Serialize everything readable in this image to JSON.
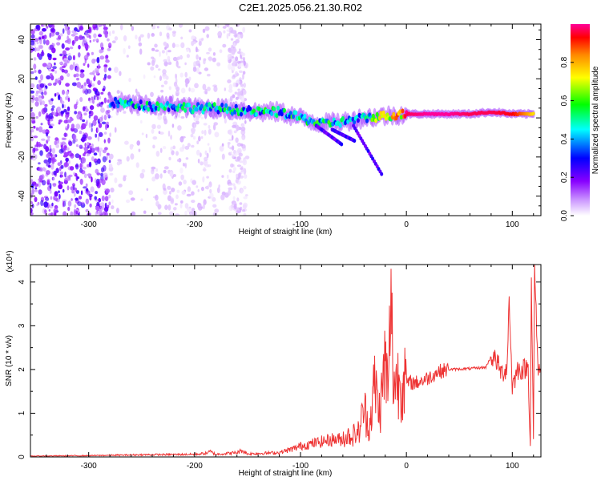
{
  "title": "C2E1.2025.056.21.30.R02",
  "chart_data": [
    {
      "type": "heatmap",
      "xlabel": "Height of straight line (km)",
      "ylabel": "Frequency (Hz)",
      "xlim": [
        -355,
        127
      ],
      "ylim": [
        -50,
        48
      ],
      "xticks": [
        -300,
        -200,
        -100,
        0,
        100
      ],
      "yticks": [
        -40,
        -20,
        0,
        20,
        40
      ],
      "colorbar": {
        "label": "Normalized spectral amplitude",
        "range": [
          0.0,
          1.0
        ],
        "ticks": [
          0.0,
          0.2,
          0.4,
          0.6,
          0.8
        ],
        "colormap": [
          "#ffffff",
          "#cc99ff",
          "#8800ff",
          "#0000ff",
          "#00ffff",
          "#00ff00",
          "#ffff00",
          "#ff8800",
          "#ff0000",
          "#ff0099"
        ]
      },
      "ridge": [
        {
          "x": -280,
          "y": 8,
          "amp": 0.45
        },
        {
          "x": -260,
          "y": 7,
          "amp": 0.5
        },
        {
          "x": -240,
          "y": 6,
          "amp": 0.5
        },
        {
          "x": -220,
          "y": 6,
          "amp": 0.5
        },
        {
          "x": -200,
          "y": 5,
          "amp": 0.5
        },
        {
          "x": -180,
          "y": 5,
          "amp": 0.5
        },
        {
          "x": -160,
          "y": 4,
          "amp": 0.5
        },
        {
          "x": -140,
          "y": 3,
          "amp": 0.5
        },
        {
          "x": -120,
          "y": 3,
          "amp": 0.55
        },
        {
          "x": -100,
          "y": 0,
          "amp": 0.55
        },
        {
          "x": -80,
          "y": -3,
          "amp": 0.55
        },
        {
          "x": -60,
          "y": -2,
          "amp": 0.5
        },
        {
          "x": -40,
          "y": 0,
          "amp": 0.45
        },
        {
          "x": -20,
          "y": 1,
          "amp": 0.75
        },
        {
          "x": 0,
          "y": 2,
          "amp": 0.95
        },
        {
          "x": 20,
          "y": 2,
          "amp": 1.0
        },
        {
          "x": 40,
          "y": 2,
          "amp": 1.0
        },
        {
          "x": 60,
          "y": 2,
          "amp": 0.95
        },
        {
          "x": 80,
          "y": 3,
          "amp": 0.95
        },
        {
          "x": 100,
          "y": 2,
          "amp": 0.9
        },
        {
          "x": 120,
          "y": 2,
          "amp": 0.7
        }
      ]
    },
    {
      "type": "line",
      "xlabel": "Height of straight line (km)",
      "ylabel": "SNR (10 * v/v)",
      "y_multiplier": "(x10⁴)",
      "xlim": [
        -355,
        127
      ],
      "ylim": [
        0,
        4.4
      ],
      "xticks": [
        -300,
        -200,
        -100,
        0,
        100
      ],
      "yticks": [
        0,
        1,
        2,
        3,
        4
      ],
      "color": "#ee3333",
      "series": [
        {
          "x": [
            -355,
            -300,
            -250,
            -200,
            -190,
            -185,
            -180,
            -160,
            -155,
            -150,
            -120,
            -105,
            -100,
            -90,
            -80,
            -70,
            -60,
            -50,
            -45,
            -40,
            -35,
            -30,
            -25,
            -20,
            -17,
            -15,
            -12,
            -10,
            -5,
            0,
            10,
            20,
            30,
            40,
            60,
            75,
            80,
            85,
            90,
            95,
            97,
            100,
            105,
            110,
            115,
            117,
            118,
            120,
            121,
            124,
            127
          ],
          "y": [
            0.02,
            0.03,
            0.05,
            0.06,
            0.08,
            0.12,
            0.06,
            0.1,
            0.15,
            0.07,
            0.1,
            0.2,
            0.25,
            0.3,
            0.35,
            0.4,
            0.4,
            0.45,
            0.5,
            1.0,
            0.6,
            1.5,
            0.9,
            2.0,
            1.2,
            3.3,
            1.5,
            1.6,
            1.5,
            1.7,
            1.7,
            1.8,
            1.95,
            2.0,
            2.02,
            2.05,
            2.3,
            2.2,
            1.9,
            2.05,
            3.6,
            1.6,
            2.0,
            2.0,
            2.05,
            0.3,
            4.0,
            0.3,
            4.4,
            2.1,
            2.0
          ]
        }
      ]
    }
  ]
}
